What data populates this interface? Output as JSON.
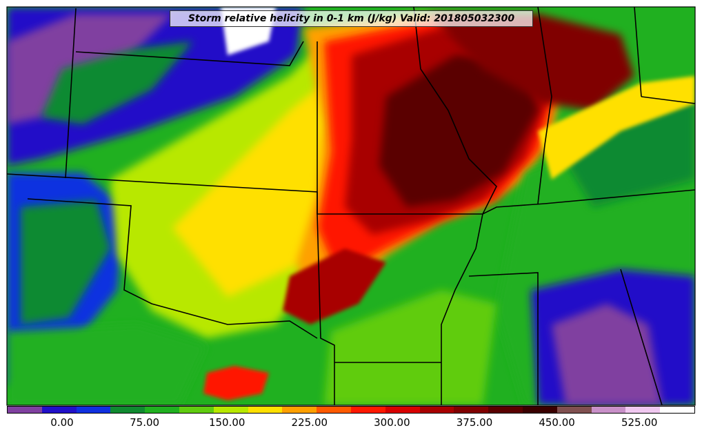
{
  "title": "Storm relative helicity in 0-1 km (J/kg) Valid: 201805032300",
  "colorbar": {
    "colors": [
      "#8040a0",
      "#2010c8",
      "#1030e0",
      "#108a30",
      "#20b020",
      "#60cc10",
      "#b8e800",
      "#ffe000",
      "#ffa000",
      "#ff5a00",
      "#ff1800",
      "#d80000",
      "#a80000",
      "#800000",
      "#5a0000",
      "#3a0000",
      "#805050",
      "#c890c8",
      "#f0c8f0",
      "#ffffff"
    ],
    "ticks": [
      "0.00",
      "75.00",
      "150.00",
      "225.00",
      "300.00",
      "375.00",
      "450.00",
      "525.00"
    ]
  }
}
